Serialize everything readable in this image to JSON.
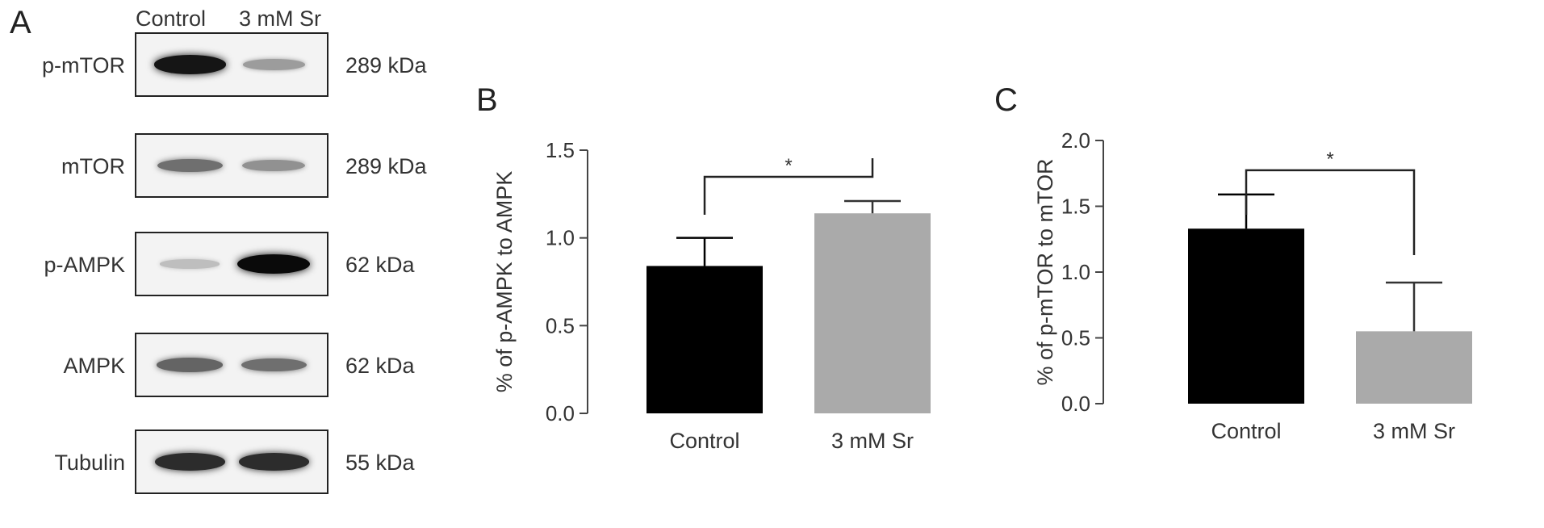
{
  "panels": {
    "a": "A",
    "b": "B",
    "c": "C"
  },
  "blot": {
    "lanes": [
      "Control",
      "3 mM Sr"
    ],
    "rows": [
      {
        "protein": "p-mTOR",
        "kda": "289 kDa",
        "intensity": [
          0.95,
          0.35
        ]
      },
      {
        "protein": "mTOR",
        "kda": "289 kDa",
        "intensity": [
          0.55,
          0.4
        ]
      },
      {
        "protein": "p-AMPK",
        "kda": "62 kDa",
        "intensity": [
          0.2,
          1.0
        ]
      },
      {
        "protein": "AMPK",
        "kda": "62 kDa",
        "intensity": [
          0.6,
          0.55
        ]
      },
      {
        "protein": "Tubulin",
        "kda": "55 kDa",
        "intensity": [
          0.85,
          0.85
        ]
      }
    ]
  },
  "colors": {
    "control": "#000000",
    "sr": "#aaaaaa",
    "axis": "#444444"
  },
  "chart_data": [
    {
      "type": "bar",
      "title": "",
      "categories": [
        "Control",
        "3 mM Sr"
      ],
      "values": [
        0.84,
        1.14
      ],
      "errors": [
        0.16,
        0.07
      ],
      "ylabel": "% of p-AMPK to AMPK",
      "xlabel": "",
      "ylim": [
        0,
        1.5
      ],
      "yticks": [
        "0.0",
        "0.5",
        "1.0",
        "1.5"
      ],
      "significance": "*",
      "grid": false
    },
    {
      "type": "bar",
      "title": "",
      "categories": [
        "Control",
        "3 mM Sr"
      ],
      "values": [
        1.33,
        0.55
      ],
      "errors": [
        0.26,
        0.37
      ],
      "ylabel": "% of p-mTOR to mTOR",
      "xlabel": "",
      "ylim": [
        0,
        2.0
      ],
      "yticks": [
        "0.0",
        "0.5",
        "1.0",
        "1.5",
        "2.0"
      ],
      "significance": "*",
      "grid": false
    }
  ]
}
